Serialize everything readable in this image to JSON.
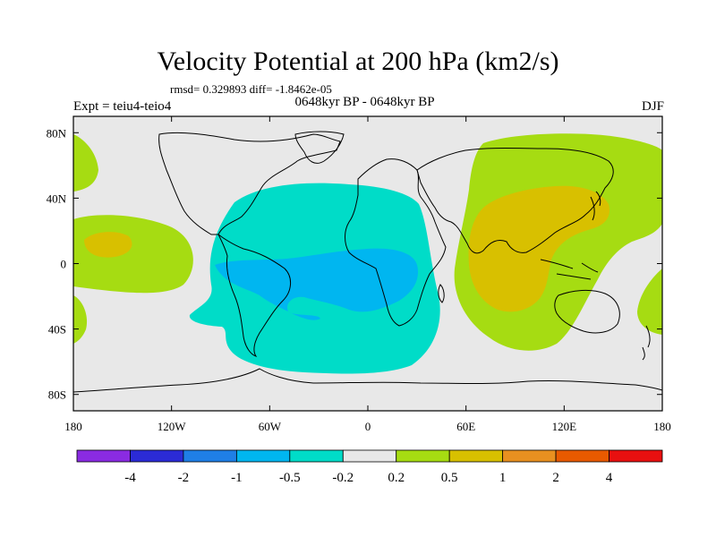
{
  "title": "Velocity Potential at 200 hPa (km2/s)",
  "subline": "rmsd= 0.329893 diff= -1.8462e-05",
  "left_label": "Expt = teiu4-teio4",
  "center_label": "0648kyr BP - 0648kyr BP",
  "right_label": "DJF",
  "map": {
    "lon_range": [
      -180,
      180
    ],
    "lat_range": [
      -90,
      90
    ],
    "lon_ticks": [
      {
        "value": -180,
        "label": "180"
      },
      {
        "value": -120,
        "label": "120W"
      },
      {
        "value": -60,
        "label": "60W"
      },
      {
        "value": 0,
        "label": "0"
      },
      {
        "value": 60,
        "label": "60E"
      },
      {
        "value": 120,
        "label": "120E"
      },
      {
        "value": 180,
        "label": "180"
      }
    ],
    "lat_ticks": [
      {
        "value": 80,
        "label": "80N"
      },
      {
        "value": 40,
        "label": "40N"
      },
      {
        "value": 0,
        "label": "0"
      },
      {
        "value": -40,
        "label": "40S"
      },
      {
        "value": -80,
        "label": "80S"
      }
    ],
    "background_color": "#e8e8e8"
  },
  "colorbar": {
    "colors": [
      "#8a2be2",
      "#2b2bd6",
      "#1f7fe6",
      "#00b6f0",
      "#00dcc8",
      "#e8e8e8",
      "#a6dc12",
      "#d8c000",
      "#e89020",
      "#e85a00",
      "#e81010"
    ],
    "labels": [
      "-4",
      "-2",
      "-1",
      "-0.5",
      "-0.2",
      "0.2",
      "0.5",
      "1",
      "2",
      "4"
    ]
  }
}
